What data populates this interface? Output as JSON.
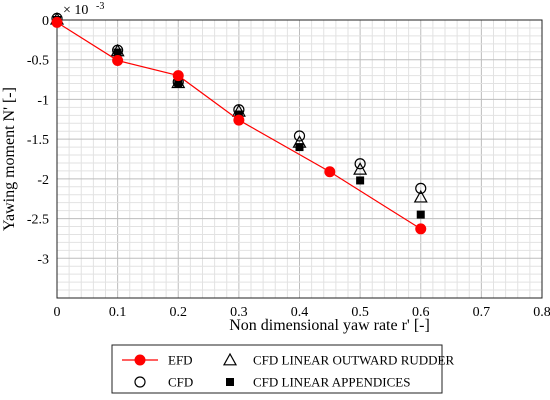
{
  "chart_data": {
    "type": "scatter",
    "title": "",
    "xlabel": "Non dimensional yaw rate r' [-]",
    "ylabel": "Yawing moment N' [-]",
    "y_multiplier": "× 10",
    "y_exponent": "-3",
    "xlim": [
      0,
      0.8
    ],
    "ylim": [
      -3.5,
      0
    ],
    "x_ticks": [
      0,
      0.1,
      0.2,
      0.3,
      0.4,
      0.5,
      0.6,
      0.7,
      0.8
    ],
    "x_tick_labels": [
      "0",
      "0.1",
      "0.2",
      "0.3",
      "0.4",
      "0.5",
      "0.6",
      "0.7",
      "0.8"
    ],
    "y_ticks": [
      0,
      -0.5,
      -1,
      -1.5,
      -2,
      -2.5,
      -3
    ],
    "y_tick_labels": [
      "0",
      "-0.5",
      "-1",
      "-1.5",
      "-2",
      "-2.5",
      "-3"
    ],
    "grid": "on (major and minor)",
    "legend_position": "bottom",
    "series": [
      {
        "name": "EFD",
        "marker": "filled-circle",
        "line": true,
        "color": "#ff0000",
        "x": [
          0,
          0.1,
          0.2,
          0.3,
          0.45,
          0.6
        ],
        "y": [
          -0.03,
          -0.51,
          -0.7,
          -1.26,
          -1.91,
          -2.63
        ]
      },
      {
        "name": "CFD",
        "marker": "open-circle",
        "line": false,
        "color": "#000000",
        "x": [
          0,
          0.1,
          0.2,
          0.3,
          0.4,
          0.5,
          0.6
        ],
        "y": [
          0.02,
          -0.38,
          -0.78,
          -1.13,
          -1.46,
          -1.81,
          -2.12
        ]
      },
      {
        "name": "CFD LINEAR OUTWARD RUDDER",
        "marker": "open-triangle",
        "line": false,
        "color": "#000000",
        "x": [
          0,
          0.1,
          0.2,
          0.3,
          0.4,
          0.5,
          0.6
        ],
        "y": [
          0.01,
          -0.39,
          -0.79,
          -1.15,
          -1.54,
          -1.88,
          -2.23
        ]
      },
      {
        "name": "CFD LINEAR APPENDICES",
        "marker": "filled-square",
        "line": false,
        "color": "#000000",
        "x": [
          0,
          0.1,
          0.2,
          0.3,
          0.4,
          0.5,
          0.6
        ],
        "y": [
          0.0,
          -0.41,
          -0.8,
          -1.19,
          -1.6,
          -2.02,
          -2.45
        ]
      }
    ]
  }
}
